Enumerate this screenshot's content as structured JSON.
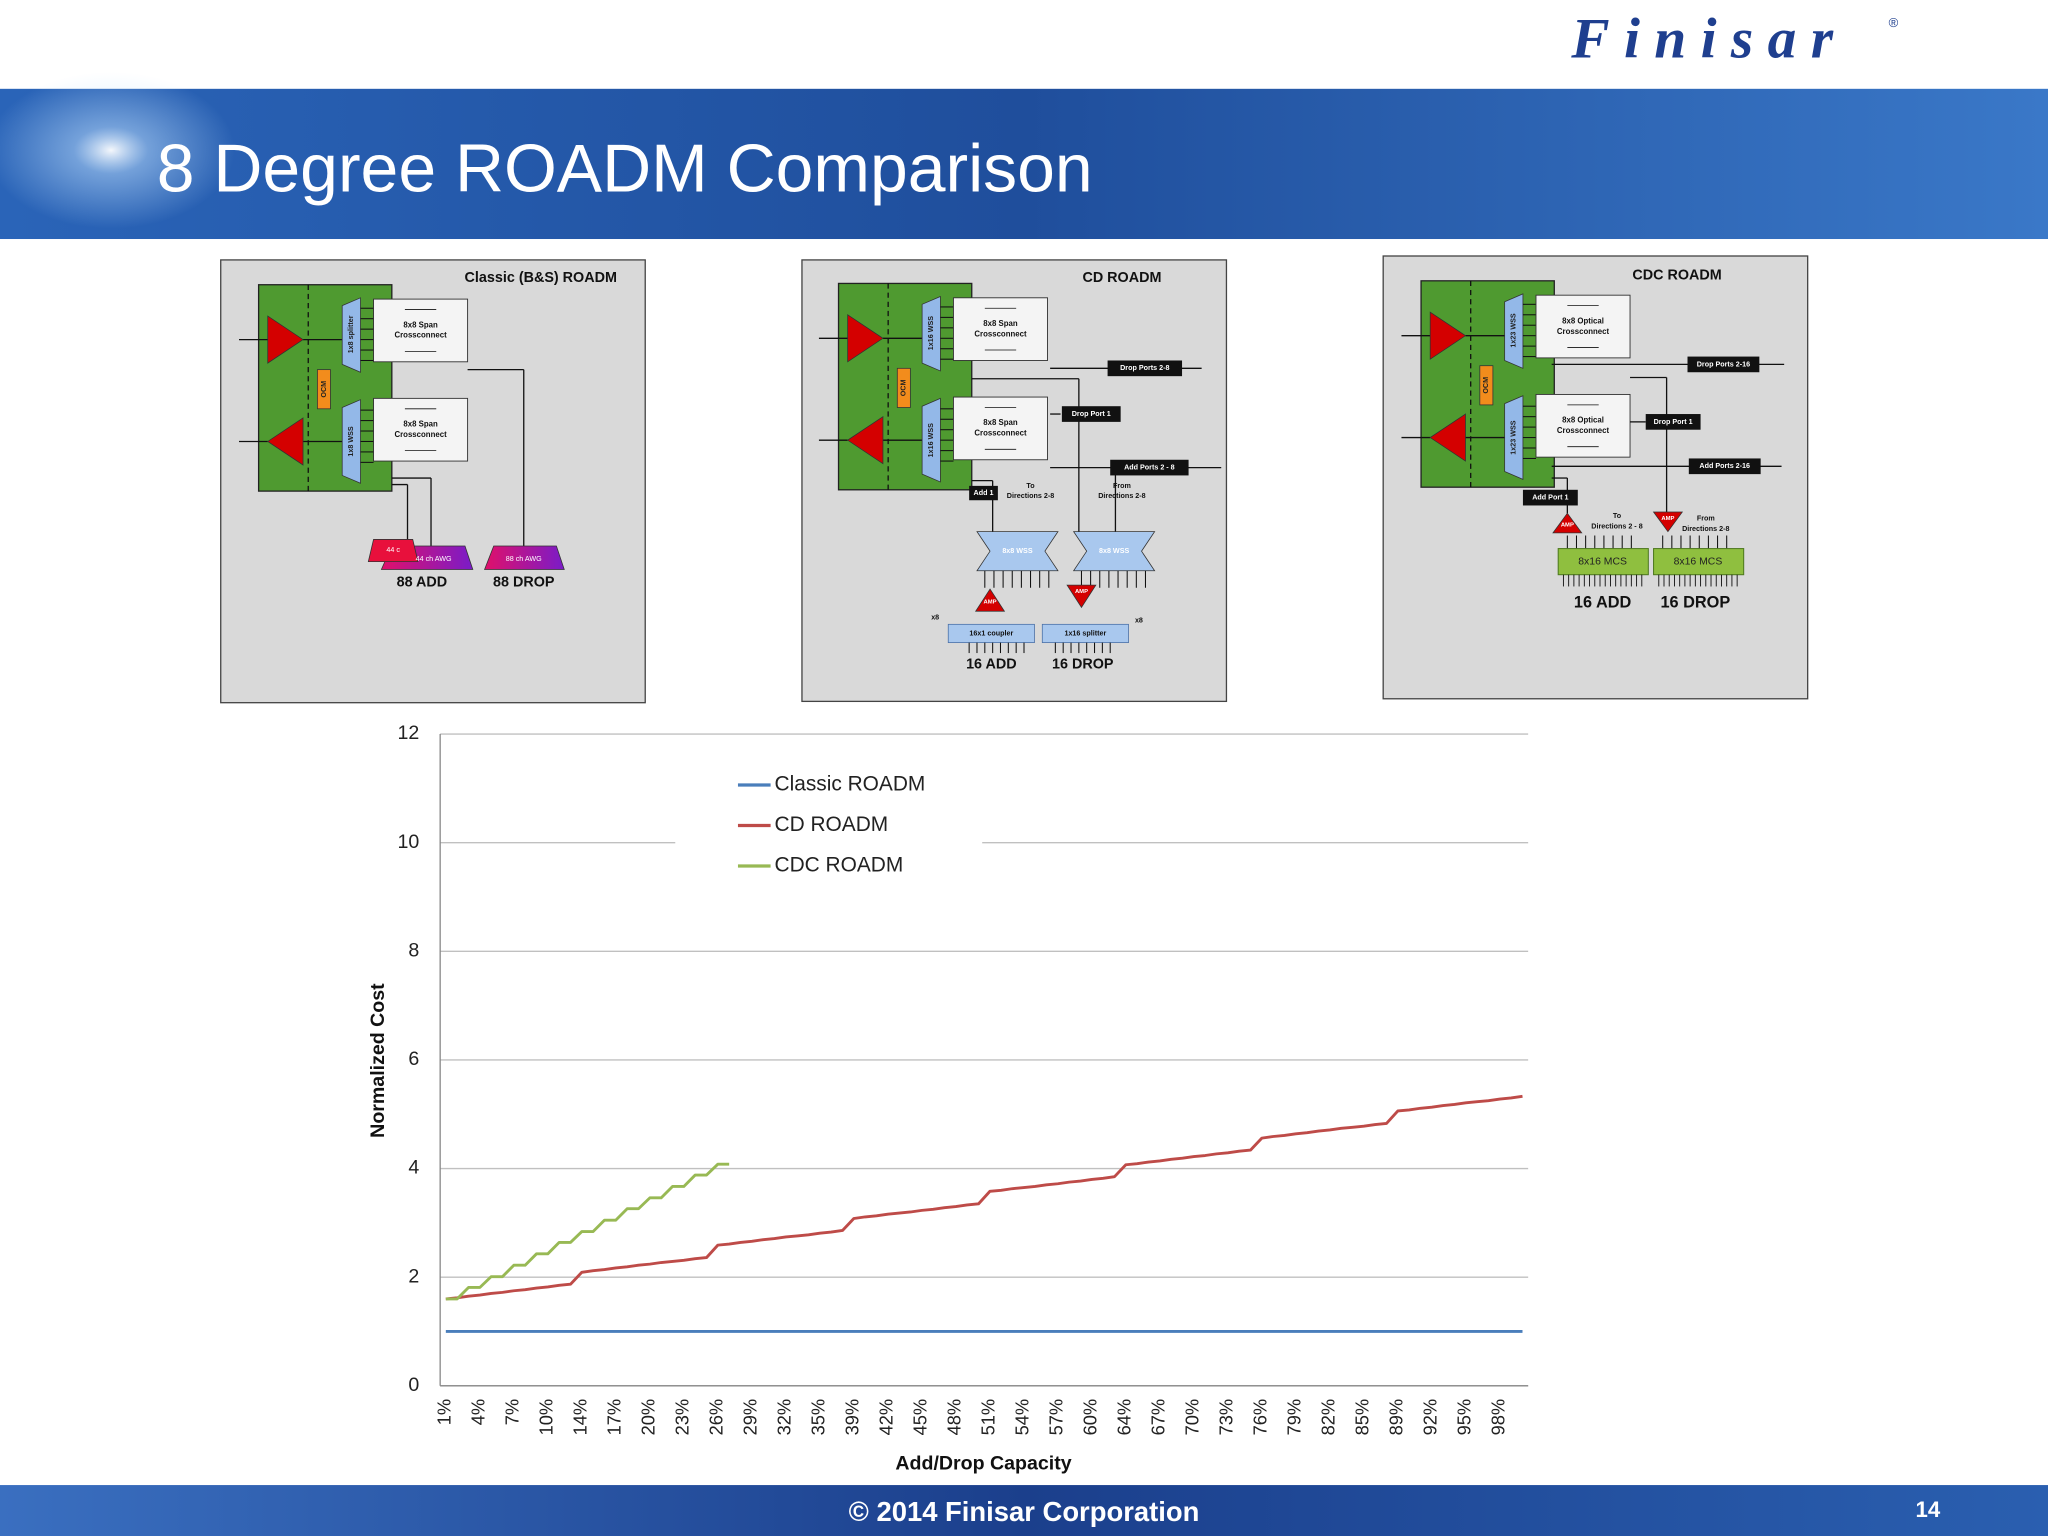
{
  "header": {
    "logo": "Finisar",
    "logo_mark": "®",
    "title": "8 Degree ROADM Comparison"
  },
  "footer": {
    "copyright": "© 2014 Finisar Corporation",
    "page_number": "14"
  },
  "diagrams": [
    {
      "title": "Classic (B&S) ROADM",
      "labels": [
        "1x8 splitter",
        "OCM",
        "1x8 WSS",
        "8x8 Span",
        "Crossconnect",
        "8x8 Span",
        "Crossconnect",
        "44 c",
        "44 ch AWG",
        "88 ch AWG",
        "88 ADD",
        "88 DROP"
      ]
    },
    {
      "title": "CD ROADM",
      "labels": [
        "1x16 WSS",
        "OCM",
        "1x16 WSS",
        "8x8 Span",
        "Crossconnect",
        "8x8 Span",
        "Crossconnect",
        "Drop Ports 2-8",
        "Drop Port 1",
        "Add Ports 2 - 8",
        "Add 1",
        "To",
        "Directions 2-8",
        "From",
        "Directions 2-8",
        "8x8 WSS",
        "8x8 WSS",
        "AMP",
        "AMP",
        "x8",
        "x8",
        "16x1 coupler",
        "1x16 splitter",
        "16 ADD",
        "16 DROP"
      ]
    },
    {
      "title": "CDC ROADM",
      "labels": [
        "1x23 WSS",
        "OCM",
        "1x23 WSS",
        "8x8 Optical",
        "Crossconnect",
        "8x8 Optical",
        "Crossconnect",
        "Drop Ports 2-16",
        "Drop Port 1",
        "Add Ports 2-16",
        "Add Port 1",
        "To",
        "Directions 2 - 8",
        "From",
        "Directions 2-8",
        "AMP",
        "AMP",
        "8x16 MCS",
        "8x16 MCS",
        "16 ADD",
        "16 DROP"
      ]
    }
  ],
  "chart_data": {
    "type": "line",
    "xlabel": "Add/Drop Capacity",
    "ylabel": "Normalized Cost",
    "ylim": [
      0,
      12
    ],
    "yticks": [
      0,
      2,
      4,
      6,
      8,
      10,
      12
    ],
    "grid": true,
    "legend": "upper left",
    "categories": [
      "1%",
      null,
      null,
      "4%",
      null,
      null,
      "7%",
      null,
      null,
      "10%",
      null,
      null,
      "14%",
      null,
      null,
      "17%",
      null,
      null,
      "20%",
      null,
      null,
      "23%",
      null,
      null,
      "26%",
      null,
      null,
      "29%",
      null,
      null,
      "32%",
      null,
      null,
      "35%",
      null,
      null,
      "39%",
      null,
      null,
      "42%",
      null,
      null,
      "45%",
      null,
      null,
      "48%",
      null,
      null,
      "51%",
      null,
      null,
      "54%",
      null,
      null,
      "57%",
      null,
      null,
      "60%",
      null,
      null,
      "64%",
      null,
      null,
      "67%",
      null,
      null,
      "70%",
      null,
      null,
      "73%",
      null,
      null,
      "76%",
      null,
      null,
      "79%",
      null,
      null,
      "82%",
      null,
      null,
      "85%",
      null,
      null,
      "89%",
      null,
      null,
      "92%",
      null,
      null,
      "95%",
      null,
      null,
      "98%",
      null,
      null
    ],
    "series": [
      {
        "name": "Classic ROADM",
        "color": "#4a7ebb",
        "values": [
          1,
          1,
          1,
          1,
          1,
          1,
          1,
          1,
          1,
          1,
          1,
          1,
          1,
          1,
          1,
          1,
          1,
          1,
          1,
          1,
          1,
          1,
          1,
          1,
          1,
          1,
          1,
          1,
          1,
          1,
          1,
          1,
          1,
          1,
          1,
          1,
          1,
          1,
          1,
          1,
          1,
          1,
          1,
          1,
          1,
          1,
          1,
          1,
          1,
          1,
          1,
          1,
          1,
          1,
          1,
          1,
          1,
          1,
          1,
          1,
          1,
          1,
          1,
          1,
          1,
          1,
          1,
          1,
          1,
          1,
          1,
          1,
          1,
          1,
          1,
          1,
          1,
          1,
          1,
          1,
          1,
          1,
          1,
          1,
          1,
          1,
          1,
          1,
          1,
          1,
          1,
          1,
          1,
          1,
          1,
          1
        ]
      },
      {
        "name": "CD ROADM",
        "color": "#be4b48",
        "values": [
          1.6,
          1.62,
          1.65,
          1.67,
          1.7,
          1.72,
          1.75,
          1.77,
          1.8,
          1.82,
          1.85,
          1.87,
          2.09,
          2.12,
          2.14,
          2.17,
          2.19,
          2.22,
          2.24,
          2.27,
          2.29,
          2.31,
          2.34,
          2.36,
          2.59,
          2.61,
          2.64,
          2.66,
          2.69,
          2.71,
          2.74,
          2.76,
          2.78,
          2.81,
          2.83,
          2.86,
          3.08,
          3.11,
          3.13,
          3.16,
          3.18,
          3.2,
          3.23,
          3.25,
          3.28,
          3.3,
          3.33,
          3.35,
          3.58,
          3.6,
          3.63,
          3.65,
          3.67,
          3.7,
          3.72,
          3.75,
          3.77,
          3.8,
          3.82,
          3.85,
          4.07,
          4.09,
          4.12,
          4.14,
          4.17,
          4.19,
          4.22,
          4.24,
          4.27,
          4.29,
          4.32,
          4.34,
          4.56,
          4.59,
          4.61,
          4.64,
          4.66,
          4.69,
          4.71,
          4.74,
          4.76,
          4.78,
          4.81,
          4.83,
          5.06,
          5.08,
          5.11,
          5.13,
          5.16,
          5.18,
          5.21,
          5.23,
          5.25,
          5.28,
          5.3,
          5.33
        ]
      },
      {
        "name": "CDC ROADM",
        "color": "#98b954",
        "values": [
          1.6,
          1.6,
          1.81,
          1.81,
          2.01,
          2.01,
          2.22,
          2.22,
          2.43,
          2.43,
          2.64,
          2.64,
          2.84,
          2.84,
          3.05,
          3.05,
          3.26,
          3.26,
          3.46,
          3.46,
          3.67,
          3.67,
          3.88,
          3.88,
          4.08,
          4.08,
          null,
          null,
          null,
          null,
          null,
          null,
          null,
          null,
          null,
          null,
          null,
          null,
          null,
          null,
          null,
          null,
          null,
          null,
          null,
          null,
          null,
          null,
          null,
          null,
          null,
          null,
          null,
          null,
          null,
          null,
          null,
          null,
          null,
          null,
          null,
          null,
          null,
          null,
          null,
          null,
          null,
          null,
          null,
          null,
          null,
          null,
          null,
          null,
          null,
          null,
          null,
          null,
          null,
          null,
          null,
          null,
          null,
          null,
          null,
          null,
          null,
          null,
          null,
          null,
          null,
          null,
          null,
          null,
          null,
          null
        ]
      }
    ]
  }
}
